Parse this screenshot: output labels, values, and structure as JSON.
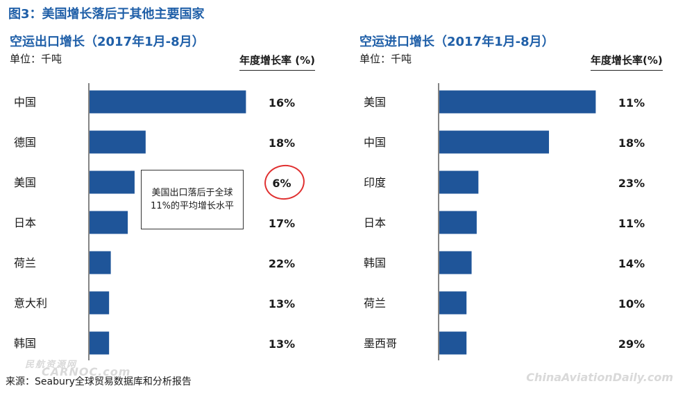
{
  "figure_title": "图3：美国增长落后于其他主要国家",
  "source": "来源：Seabury全球贸易数据库和分析报告",
  "watermarks": {
    "left_line1": "民航资源网",
    "left_line2": "CARNOC.com",
    "right": "ChinaAviationDaily.com"
  },
  "callout": {
    "line1": "美国出口落后于全球",
    "line2": "11%的平均增长水平"
  },
  "colors": {
    "bar": "#1f5599",
    "title": "#1f5fa8",
    "highlight_circle": "#e03030"
  },
  "chart_data": [
    {
      "type": "bar",
      "orientation": "horizontal",
      "title": "空运出口增长（2017年1月-8月）",
      "unit_label": "单位：千吨",
      "growth_header": "年度增长率 (%)",
      "categories": [
        "中国",
        "德国",
        "美国",
        "日本",
        "荷兰",
        "意大利",
        "韩国"
      ],
      "values": [
        920,
        330,
        265,
        225,
        125,
        115,
        115
      ],
      "growth_labels": [
        "16%",
        "18%",
        "6%",
        "17%",
        "22%",
        "13%",
        "13%"
      ],
      "highlighted_category": "美国",
      "xlim": [
        0,
        1000
      ]
    },
    {
      "type": "bar",
      "orientation": "horizontal",
      "title": "空运进口增长（2017年1月-8月）",
      "unit_label": "单位：千吨",
      "growth_header": "年度增长率(%)",
      "categories": [
        "美国",
        "中国",
        "印度",
        "日本",
        "韩国",
        "荷兰",
        "墨西哥"
      ],
      "values": [
        920,
        645,
        230,
        220,
        190,
        160,
        160
      ],
      "growth_labels": [
        "11%",
        "18%",
        "23%",
        "11%",
        "14%",
        "10%",
        "29%"
      ],
      "xlim": [
        0,
        1000
      ]
    }
  ]
}
